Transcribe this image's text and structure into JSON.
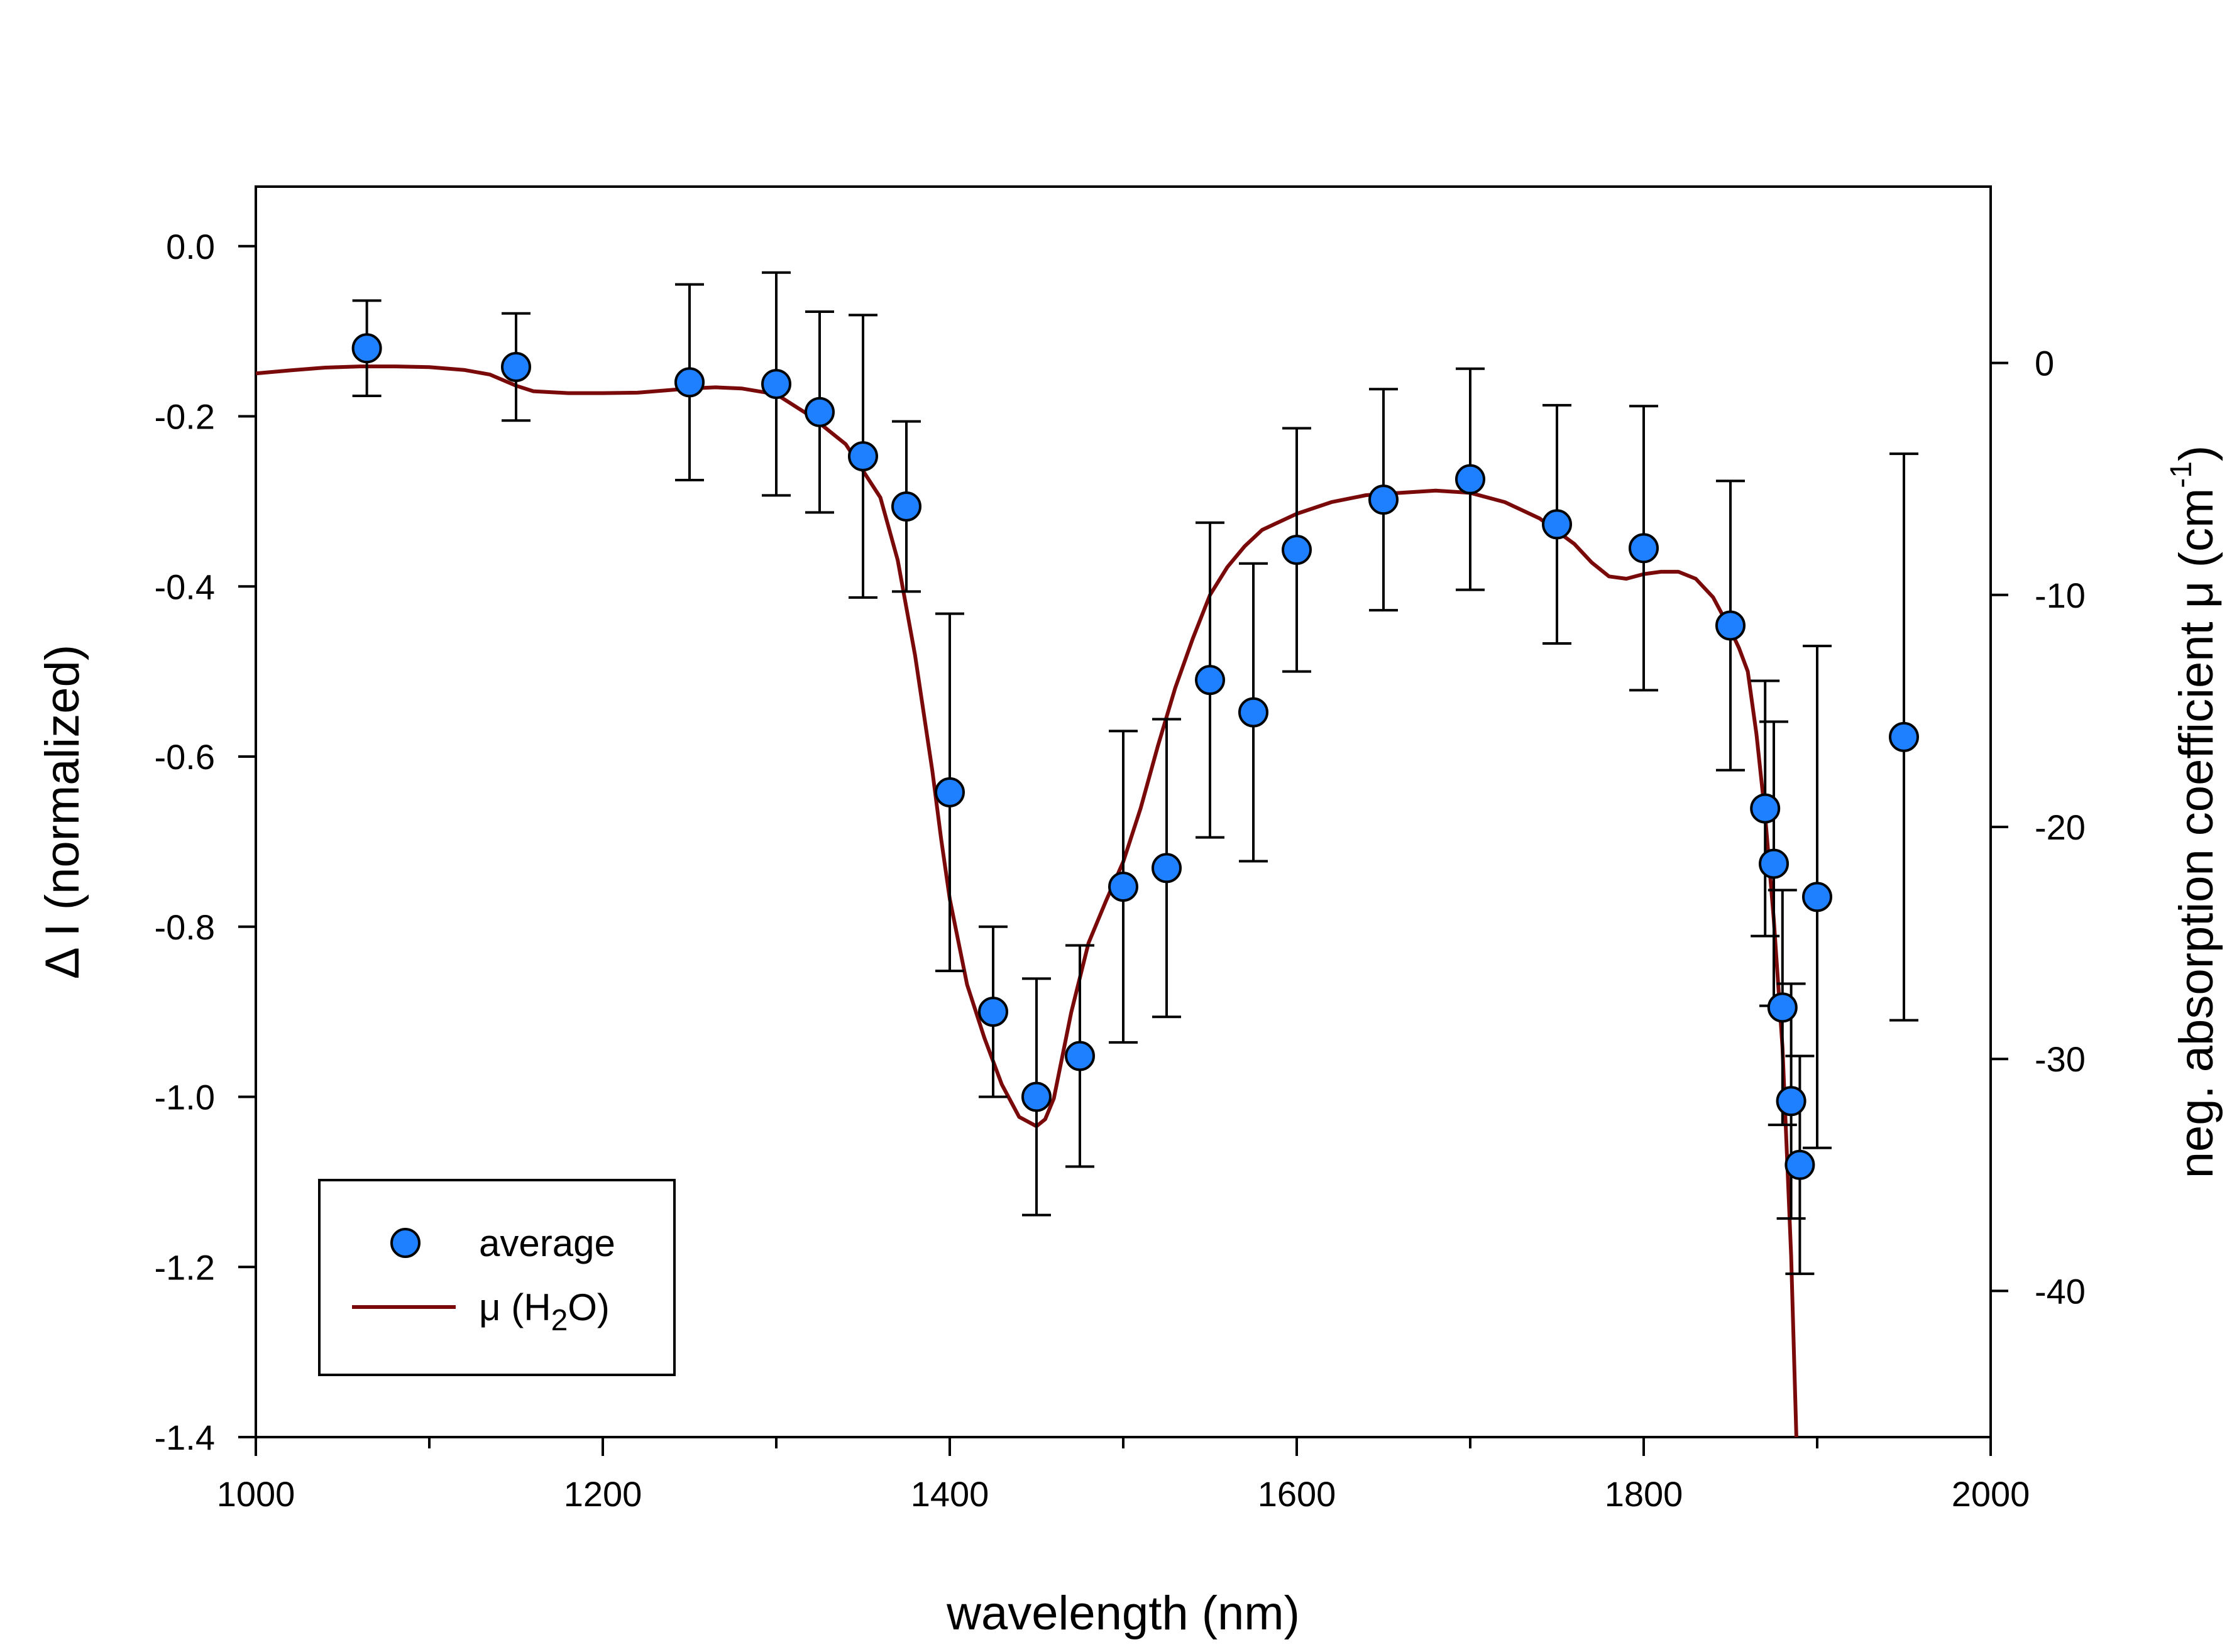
{
  "chart_data": {
    "type": "scatter",
    "title": "",
    "xlabel": "wavelength (nm)",
    "ylabel": "Δ I (normalized)",
    "y2label_main": "neg. absorption coefficient μ (cm",
    "y2label_sup": "-1",
    "y2label_close": ")",
    "xlim": [
      1000,
      2000
    ],
    "ylim": [
      -1.4,
      0.07
    ],
    "y2lim": [
      -46.3,
      7.6
    ],
    "x_major_ticks": [
      1000,
      1200,
      1400,
      1600,
      1800,
      2000
    ],
    "x_minor_ticks": [
      1100,
      1300,
      1500,
      1700,
      1900
    ],
    "x_tick_labels": [
      "1000",
      "1200",
      "1400",
      "1600",
      "1800",
      "2000"
    ],
    "y_ticks": [
      0.0,
      -0.2,
      -0.4,
      -0.6,
      -0.8,
      -1.0,
      -1.2,
      -1.4
    ],
    "y_tick_labels": [
      "0.0",
      "-0.2",
      "-0.4",
      "-0.6",
      "-0.8",
      "-1.0",
      "-1.2",
      "-1.4"
    ],
    "y2_ticks": [
      0,
      -10,
      -20,
      -30,
      -40
    ],
    "y2_tick_labels": [
      "0",
      "-10",
      "-20",
      "-30",
      "-40"
    ],
    "grid": false,
    "legend_position": "bottom-left",
    "series": [
      {
        "name": "average",
        "kind": "scatter-errorbar",
        "color": "#1E7FFF",
        "points": [
          {
            "x": 1064,
            "y": -0.12,
            "err": 0.056
          },
          {
            "x": 1150,
            "y": -0.142,
            "err": 0.063
          },
          {
            "x": 1250,
            "y": -0.16,
            "err": 0.115
          },
          {
            "x": 1300,
            "y": -0.162,
            "err": 0.131
          },
          {
            "x": 1325,
            "y": -0.195,
            "err": 0.118
          },
          {
            "x": 1350,
            "y": -0.247,
            "err": 0.166
          },
          {
            "x": 1375,
            "y": -0.306,
            "err": 0.1
          },
          {
            "x": 1400,
            "y": -0.642,
            "err": 0.21
          },
          {
            "x": 1425,
            "y": -0.9,
            "err": 0.1
          },
          {
            "x": 1450,
            "y": -1.0,
            "err": 0.139
          },
          {
            "x": 1475,
            "y": -0.952,
            "err": 0.13
          },
          {
            "x": 1500,
            "y": -0.753,
            "err": 0.183
          },
          {
            "x": 1525,
            "y": -0.731,
            "err": 0.175
          },
          {
            "x": 1550,
            "y": -0.51,
            "err": 0.185
          },
          {
            "x": 1575,
            "y": -0.548,
            "err": 0.175
          },
          {
            "x": 1600,
            "y": -0.357,
            "err": 0.143
          },
          {
            "x": 1650,
            "y": -0.298,
            "err": 0.13
          },
          {
            "x": 1700,
            "y": -0.274,
            "err": 0.13
          },
          {
            "x": 1750,
            "y": -0.327,
            "err": 0.14
          },
          {
            "x": 1800,
            "y": -0.355,
            "err": 0.167
          },
          {
            "x": 1850,
            "y": -0.446,
            "err": 0.17
          },
          {
            "x": 1870,
            "y": -0.661,
            "err": 0.15
          },
          {
            "x": 1875,
            "y": -0.726,
            "err": 0.167
          },
          {
            "x": 1880,
            "y": -0.895,
            "err": 0.138
          },
          {
            "x": 1885,
            "y": -1.005,
            "err": 0.138
          },
          {
            "x": 1890,
            "y": -1.08,
            "err": 0.128
          },
          {
            "x": 1900,
            "y": -0.765,
            "err": 0.295
          },
          {
            "x": 1950,
            "y": -0.577,
            "err": 0.333
          }
        ]
      },
      {
        "name": "μ (H2O)",
        "legend_main": "μ (H",
        "legend_sub": "2",
        "legend_close": "O)",
        "kind": "line",
        "axis": "right",
        "color": "#7A0A0A",
        "x": [
          1000,
          1020,
          1040,
          1060,
          1080,
          1100,
          1120,
          1135,
          1150,
          1160,
          1170,
          1180,
          1200,
          1220,
          1250,
          1265,
          1280,
          1300,
          1320,
          1340,
          1360,
          1370,
          1380,
          1390,
          1395,
          1400,
          1410,
          1420,
          1430,
          1440,
          1450,
          1455,
          1460,
          1470,
          1480,
          1490,
          1500,
          1510,
          1520,
          1530,
          1540,
          1550,
          1560,
          1570,
          1580,
          1600,
          1620,
          1640,
          1660,
          1680,
          1700,
          1720,
          1740,
          1760,
          1770,
          1780,
          1790,
          1800,
          1810,
          1820,
          1830,
          1840,
          1850,
          1855,
          1860,
          1865,
          1870,
          1875,
          1880,
          1885,
          1888
        ],
        "y": [
          -0.45,
          -0.32,
          -0.2,
          -0.15,
          -0.15,
          -0.18,
          -0.3,
          -0.5,
          -0.98,
          -1.22,
          -1.26,
          -1.3,
          -1.3,
          -1.28,
          -1.1,
          -1.05,
          -1.1,
          -1.35,
          -2.3,
          -3.5,
          -5.8,
          -8.5,
          -12.6,
          -17.6,
          -20.5,
          -23.1,
          -26.8,
          -29.1,
          -31.1,
          -32.5,
          -32.9,
          -32.6,
          -31.7,
          -28.0,
          -25.0,
          -23.2,
          -21.5,
          -19.2,
          -16.5,
          -14.0,
          -11.9,
          -10.0,
          -8.8,
          -7.9,
          -7.2,
          -6.5,
          -6.0,
          -5.7,
          -5.6,
          -5.5,
          -5.6,
          -6.0,
          -6.7,
          -7.8,
          -8.6,
          -9.2,
          -9.3,
          -9.1,
          -9.0,
          -9.0,
          -9.3,
          -10.1,
          -11.5,
          -12.3,
          -13.3,
          -16.0,
          -19.5,
          -24.0,
          -29.5,
          -38.5,
          -46.3
        ]
      }
    ]
  }
}
